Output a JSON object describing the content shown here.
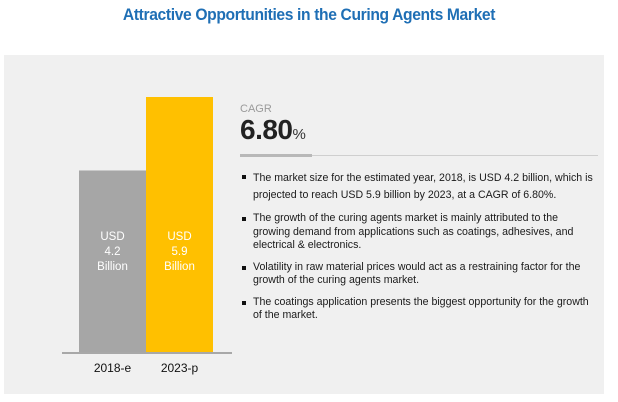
{
  "title": "Attractive Opportunities in the Curing Agents Market",
  "chart_data": {
    "type": "bar",
    "title": "Attractive Opportunities in the Curing Agents Market",
    "xlabel": "",
    "ylabel": "",
    "categories": [
      "2018-e",
      "2023-p"
    ],
    "values": [
      4.2,
      5.9
    ],
    "unit": "USD Billion",
    "bar_labels": [
      [
        "USD",
        "4.2",
        "Billion"
      ],
      [
        "USD",
        "5.9",
        "Billion"
      ]
    ],
    "colors": [
      "#a6a6a6",
      "#ffc000"
    ],
    "ylim": [
      0,
      5.9
    ],
    "grid": false,
    "legend": "none"
  },
  "cagr": {
    "label": "CAGR",
    "value": "6.80",
    "unit": "%"
  },
  "bullets": [
    "The market size for the estimated year, 2018, is USD 4.2 billion, which is projected to reach USD 5.9 billion by 2023, at a CAGR of 6.80%.",
    "The growth of the curing agents market is mainly attributed to the growing demand from applications such as coatings, adhesives, and electrical & electronics.",
    "Volatility in raw material prices would act as a restraining factor for the growth of the curing agents market.",
    "The coatings application presents the biggest opportunity for the growth of the market."
  ]
}
